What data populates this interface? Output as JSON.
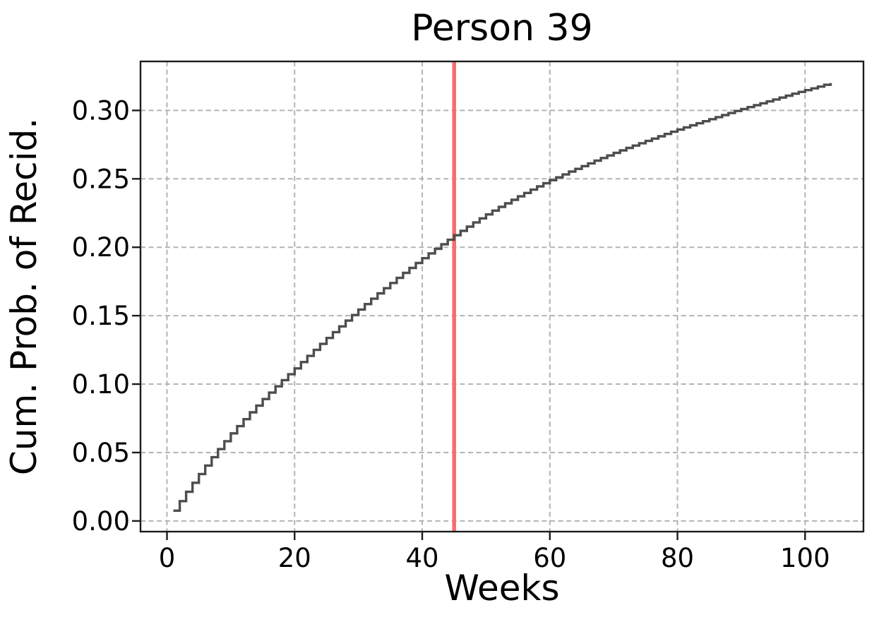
{
  "figure": {
    "background": "#ffffff",
    "text_color": "#000000",
    "spine_color": "#1c1c1c",
    "grid_color": "#b4b4b4"
  },
  "chart_data": {
    "type": "line",
    "subtype": "step-post",
    "title": "Person 39",
    "xlabel": "Weeks",
    "ylabel": "Cum. Prob. of Recid.",
    "xlim": [
      -4.15,
      109.15
    ],
    "ylim": [
      -0.0078,
      0.3358
    ],
    "grid": true,
    "legend_position": "none",
    "xticks": [
      0,
      20,
      40,
      60,
      80,
      100
    ],
    "xtick_labels": [
      "0",
      "20",
      "40",
      "60",
      "80",
      "100"
    ],
    "yticks": [
      0,
      0.05,
      0.1,
      0.15,
      0.2,
      0.25,
      0.3
    ],
    "ytick_labels": [
      "0.00",
      "0.05",
      "0.10",
      "0.15",
      "0.20",
      "0.25",
      "0.30"
    ],
    "vline": {
      "x": 45,
      "color": "#f86c6e",
      "width": 5.5
    },
    "series": [
      {
        "name": "cumulative-probability-of-recidivism",
        "color": "#4d4d4d",
        "width": 3.4,
        "x": [
          1,
          2,
          3,
          4,
          5,
          6,
          7,
          8,
          9,
          10,
          11,
          12,
          13,
          14,
          15,
          16,
          17,
          18,
          19,
          20,
          21,
          22,
          23,
          24,
          25,
          26,
          27,
          28,
          29,
          30,
          31,
          32,
          33,
          34,
          35,
          36,
          37,
          38,
          39,
          40,
          41,
          42,
          43,
          44,
          45,
          46,
          47,
          48,
          49,
          50,
          51,
          52,
          53,
          54,
          55,
          56,
          57,
          58,
          59,
          60,
          61,
          62,
          63,
          64,
          65,
          66,
          67,
          68,
          69,
          70,
          71,
          72,
          73,
          74,
          75,
          76,
          77,
          78,
          79,
          80,
          81,
          82,
          83,
          84,
          85,
          86,
          87,
          88,
          89,
          90,
          91,
          92,
          93,
          94,
          95,
          96,
          97,
          98,
          99,
          100,
          101,
          102,
          103,
          104
        ],
        "y": [
          0.0075,
          0.0145,
          0.0213,
          0.0279,
          0.0343,
          0.0405,
          0.0466,
          0.0525,
          0.0583,
          0.064,
          0.0693,
          0.0744,
          0.0794,
          0.0843,
          0.0891,
          0.0938,
          0.0984,
          0.1029,
          0.1072,
          0.1115,
          0.1161,
          0.1206,
          0.125,
          0.1294,
          0.1337,
          0.138,
          0.1422,
          0.1464,
          0.1505,
          0.1545,
          0.1585,
          0.1624,
          0.1663,
          0.1701,
          0.1739,
          0.1776,
          0.1813,
          0.1849,
          0.1885,
          0.192,
          0.1955,
          0.1989,
          0.2022,
          0.2055,
          0.2088,
          0.212,
          0.2151,
          0.2181,
          0.2211,
          0.224,
          0.2268,
          0.2295,
          0.2321,
          0.2347,
          0.2372,
          0.2397,
          0.2421,
          0.2445,
          0.2468,
          0.249,
          0.2511,
          0.2532,
          0.2553,
          0.2573,
          0.2593,
          0.2613,
          0.2633,
          0.2652,
          0.2671,
          0.269,
          0.2708,
          0.2726,
          0.2743,
          0.276,
          0.2777,
          0.2794,
          0.2811,
          0.2828,
          0.2844,
          0.286,
          0.2876,
          0.2891,
          0.2906,
          0.2921,
          0.2936,
          0.2951,
          0.2966,
          0.2981,
          0.2996,
          0.301,
          0.3024,
          0.3038,
          0.3052,
          0.3066,
          0.308,
          0.3094,
          0.3108,
          0.3122,
          0.3135,
          0.3148,
          0.3161,
          0.3174,
          0.3187,
          0.32
        ]
      }
    ]
  }
}
